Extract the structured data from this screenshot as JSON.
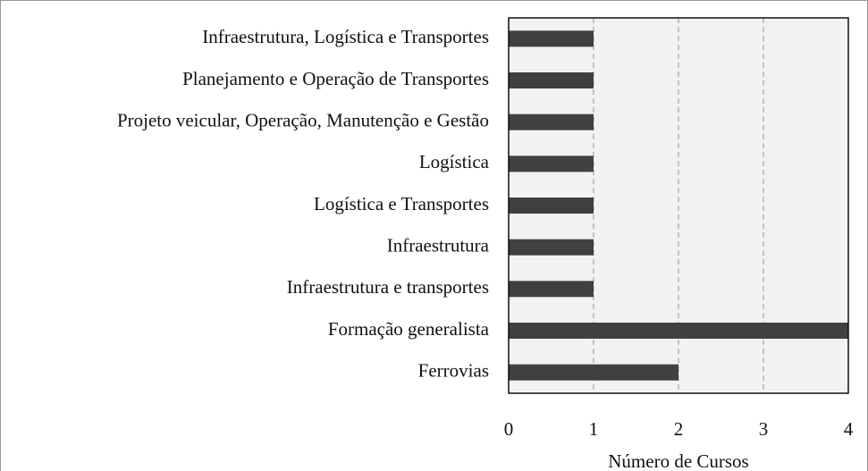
{
  "chart_data": {
    "type": "bar",
    "orientation": "horizontal",
    "categories": [
      "Infraestrutura, Logística e Transportes",
      "Planejamento e Operação de Transportes",
      "Projeto veicular, Operação, Manutenção e Gestão",
      "Logística",
      "Logística e Transportes",
      "Infraestrutura",
      "Infraestrutura e transportes",
      "Formação generalista",
      "Ferrovias"
    ],
    "values": [
      1,
      1,
      1,
      1,
      1,
      1,
      1,
      4,
      2
    ],
    "color": "#404040",
    "xlim": [
      0,
      4
    ],
    "xticks": [
      0,
      1,
      2,
      3,
      4
    ],
    "xlabel": "Número de Cursos",
    "grid": true
  }
}
